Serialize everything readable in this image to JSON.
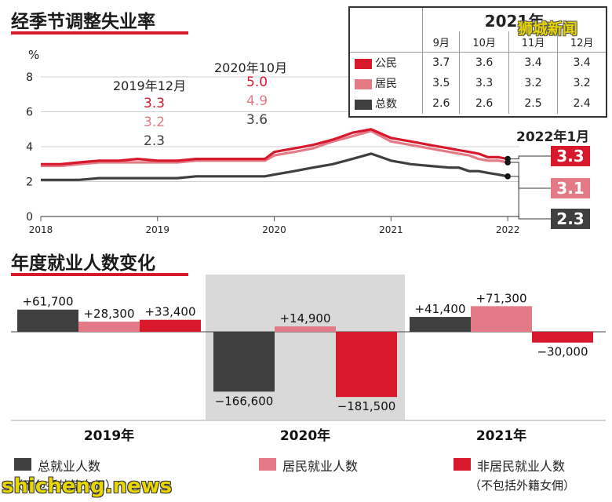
{
  "colors": {
    "citizen": "#d7192b",
    "resident": "#e37a86",
    "total": "#3f3f3f",
    "nonresident": "#d7192b",
    "shade": "#d9d9d9",
    "accent": "#d7192b"
  },
  "line_chart": {
    "title": "经季节调整失业率",
    "unit": "%",
    "annotations": {
      "dec2019": {
        "label": "2019年12月",
        "citizen": "3.3",
        "resident": "3.2",
        "total": "2.3"
      },
      "oct2020": {
        "label": "2020年10月",
        "citizen": "5.0",
        "resident": "4.9",
        "total": "3.6"
      },
      "jan2022": {
        "label": "2022年1月",
        "citizen": "3.3",
        "resident": "3.1",
        "total": "2.3"
      }
    },
    "table": {
      "year": "2021年",
      "months": [
        "9月",
        "10月",
        "11月",
        "12月"
      ],
      "rows": [
        {
          "label": "公民",
          "color": "#d7192b",
          "values": [
            "3.7",
            "3.6",
            "3.4",
            "3.4"
          ]
        },
        {
          "label": "居民",
          "color": "#e37a86",
          "values": [
            "3.5",
            "3.3",
            "3.2",
            "3.2"
          ]
        },
        {
          "label": "总数",
          "color": "#3f3f3f",
          "values": [
            "2.6",
            "2.6",
            "2.5",
            "2.4"
          ]
        }
      ]
    }
  },
  "bar_chart": {
    "title": "年度就业人数变化",
    "legend": {
      "total": "总就业人数",
      "total_sub": "（不包括外籍女佣）",
      "resident": "居民就业人数",
      "nonresident": "非居民就业人数",
      "nonresident_sub": "（不包括外籍女佣）"
    }
  },
  "chart_data": [
    {
      "type": "line",
      "title": "经季节调整失业率",
      "ylabel": "%",
      "ylim": [
        0,
        8
      ],
      "yticks": [
        0,
        2,
        4,
        6,
        8
      ],
      "xticks": [
        "2018",
        "2019",
        "2020",
        "2021",
        "2022"
      ],
      "xlim": [
        2018.0,
        2022.1
      ],
      "grid": true,
      "series": [
        {
          "name": "公民",
          "color": "#d7192b",
          "points": [
            [
              2018.0,
              3.0
            ],
            [
              2018.17,
              3.0
            ],
            [
              2018.33,
              3.1
            ],
            [
              2018.5,
              3.2
            ],
            [
              2018.67,
              3.2
            ],
            [
              2018.83,
              3.3
            ],
            [
              2019.0,
              3.2
            ],
            [
              2019.17,
              3.2
            ],
            [
              2019.33,
              3.3
            ],
            [
              2019.5,
              3.3
            ],
            [
              2019.67,
              3.3
            ],
            [
              2019.92,
              3.3
            ],
            [
              2020.0,
              3.7
            ],
            [
              2020.17,
              3.9
            ],
            [
              2020.33,
              4.1
            ],
            [
              2020.5,
              4.4
            ],
            [
              2020.67,
              4.8
            ],
            [
              2020.83,
              5.0
            ],
            [
              2021.0,
              4.5
            ],
            [
              2021.17,
              4.3
            ],
            [
              2021.33,
              4.1
            ],
            [
              2021.5,
              3.9
            ],
            [
              2021.58,
              3.8
            ],
            [
              2021.67,
              3.7
            ],
            [
              2021.75,
              3.6
            ],
            [
              2021.83,
              3.4
            ],
            [
              2021.92,
              3.4
            ],
            [
              2022.0,
              3.3
            ]
          ]
        },
        {
          "name": "居民",
          "color": "#e37a86",
          "points": [
            [
              2018.0,
              2.9
            ],
            [
              2018.17,
              2.9
            ],
            [
              2018.33,
              3.0
            ],
            [
              2018.5,
              3.1
            ],
            [
              2018.67,
              3.1
            ],
            [
              2018.83,
              3.1
            ],
            [
              2019.0,
              3.1
            ],
            [
              2019.17,
              3.1
            ],
            [
              2019.33,
              3.2
            ],
            [
              2019.5,
              3.2
            ],
            [
              2019.67,
              3.2
            ],
            [
              2019.92,
              3.2
            ],
            [
              2020.0,
              3.5
            ],
            [
              2020.17,
              3.7
            ],
            [
              2020.33,
              3.9
            ],
            [
              2020.5,
              4.3
            ],
            [
              2020.67,
              4.6
            ],
            [
              2020.83,
              4.9
            ],
            [
              2021.0,
              4.3
            ],
            [
              2021.17,
              4.1
            ],
            [
              2021.33,
              3.9
            ],
            [
              2021.5,
              3.7
            ],
            [
              2021.58,
              3.6
            ],
            [
              2021.67,
              3.5
            ],
            [
              2021.75,
              3.3
            ],
            [
              2021.83,
              3.2
            ],
            [
              2021.92,
              3.2
            ],
            [
              2022.0,
              3.1
            ]
          ]
        },
        {
          "name": "总数",
          "color": "#3f3f3f",
          "points": [
            [
              2018.0,
              2.1
            ],
            [
              2018.17,
              2.1
            ],
            [
              2018.33,
              2.1
            ],
            [
              2018.5,
              2.2
            ],
            [
              2018.67,
              2.2
            ],
            [
              2018.83,
              2.2
            ],
            [
              2019.0,
              2.2
            ],
            [
              2019.17,
              2.2
            ],
            [
              2019.33,
              2.3
            ],
            [
              2019.5,
              2.3
            ],
            [
              2019.67,
              2.3
            ],
            [
              2019.92,
              2.3
            ],
            [
              2020.0,
              2.4
            ],
            [
              2020.17,
              2.6
            ],
            [
              2020.33,
              2.8
            ],
            [
              2020.5,
              3.0
            ],
            [
              2020.67,
              3.3
            ],
            [
              2020.83,
              3.6
            ],
            [
              2021.0,
              3.2
            ],
            [
              2021.17,
              3.0
            ],
            [
              2021.33,
              2.9
            ],
            [
              2021.5,
              2.8
            ],
            [
              2021.58,
              2.8
            ],
            [
              2021.67,
              2.6
            ],
            [
              2021.75,
              2.6
            ],
            [
              2021.83,
              2.5
            ],
            [
              2021.92,
              2.4
            ],
            [
              2022.0,
              2.3
            ]
          ]
        }
      ]
    },
    {
      "type": "bar",
      "title": "年度就业人数变化",
      "categories": [
        "2019年",
        "2020年",
        "2021年"
      ],
      "series": [
        {
          "name": "总就业人数",
          "color": "#3f3f3f",
          "values": [
            61700,
            -166600,
            41400
          ],
          "labels": [
            "+61,700",
            "−166,600",
            "+41,400"
          ]
        },
        {
          "name": "居民就业人数",
          "color": "#e37a86",
          "values": [
            28300,
            14900,
            71300
          ],
          "labels": [
            "+28,300",
            "+14,900",
            "+71,300"
          ]
        },
        {
          "name": "非居民就业人数",
          "color": "#d7192b",
          "values": [
            33400,
            -181500,
            -30000
          ],
          "labels": [
            "+33,400",
            "−181,500",
            "−30,000"
          ]
        }
      ],
      "highlight_category": "2020年"
    }
  ],
  "watermarks": {
    "top": "狮城新闻",
    "bottom": "shicheng.news"
  }
}
